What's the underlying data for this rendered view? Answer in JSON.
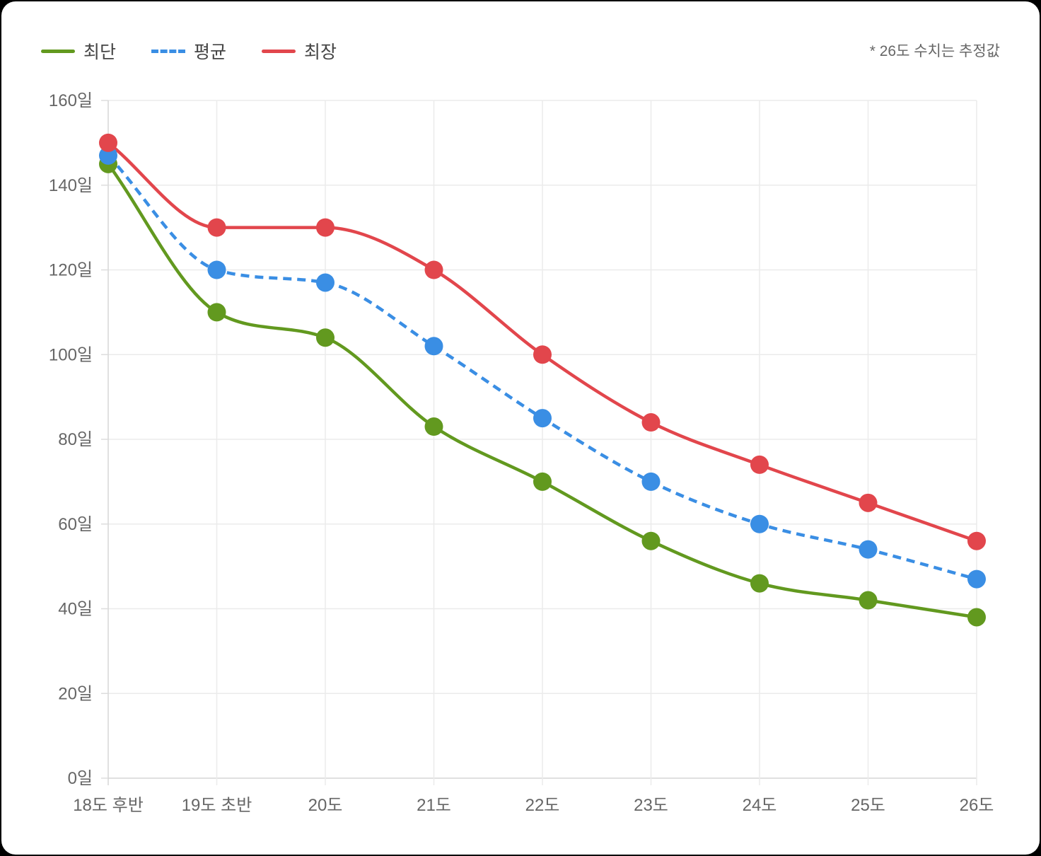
{
  "legend": {
    "items": [
      {
        "label": "최단",
        "color": "#62991f",
        "dashed": false
      },
      {
        "label": "평균",
        "color": "#3a8ee4",
        "dashed": true
      },
      {
        "label": "최장",
        "color": "#e2464c",
        "dashed": false
      }
    ]
  },
  "note": "* 26도 수치는 추정값",
  "chart_data": {
    "type": "line",
    "categories": [
      "18도 후반",
      "19도 초반",
      "20도",
      "21도",
      "22도",
      "23도",
      "24도",
      "25도",
      "26도"
    ],
    "series": [
      {
        "name": "최단",
        "values": [
          145,
          110,
          104,
          83,
          70,
          56,
          46,
          42,
          38
        ],
        "color": "#62991f",
        "dashed": false
      },
      {
        "name": "평균",
        "values": [
          147,
          120,
          117,
          102,
          85,
          70,
          60,
          54,
          47
        ],
        "color": "#3a8ee4",
        "dashed": true
      },
      {
        "name": "최장",
        "values": [
          150,
          130,
          130,
          120,
          100,
          84,
          74,
          65,
          56
        ],
        "color": "#e2464c",
        "dashed": false
      }
    ],
    "ylim": [
      0,
      160
    ],
    "yticks": [
      0,
      20,
      40,
      60,
      80,
      100,
      120,
      140,
      160
    ],
    "ytick_suffix": "일",
    "grid": true,
    "legend_position": "top-left"
  }
}
